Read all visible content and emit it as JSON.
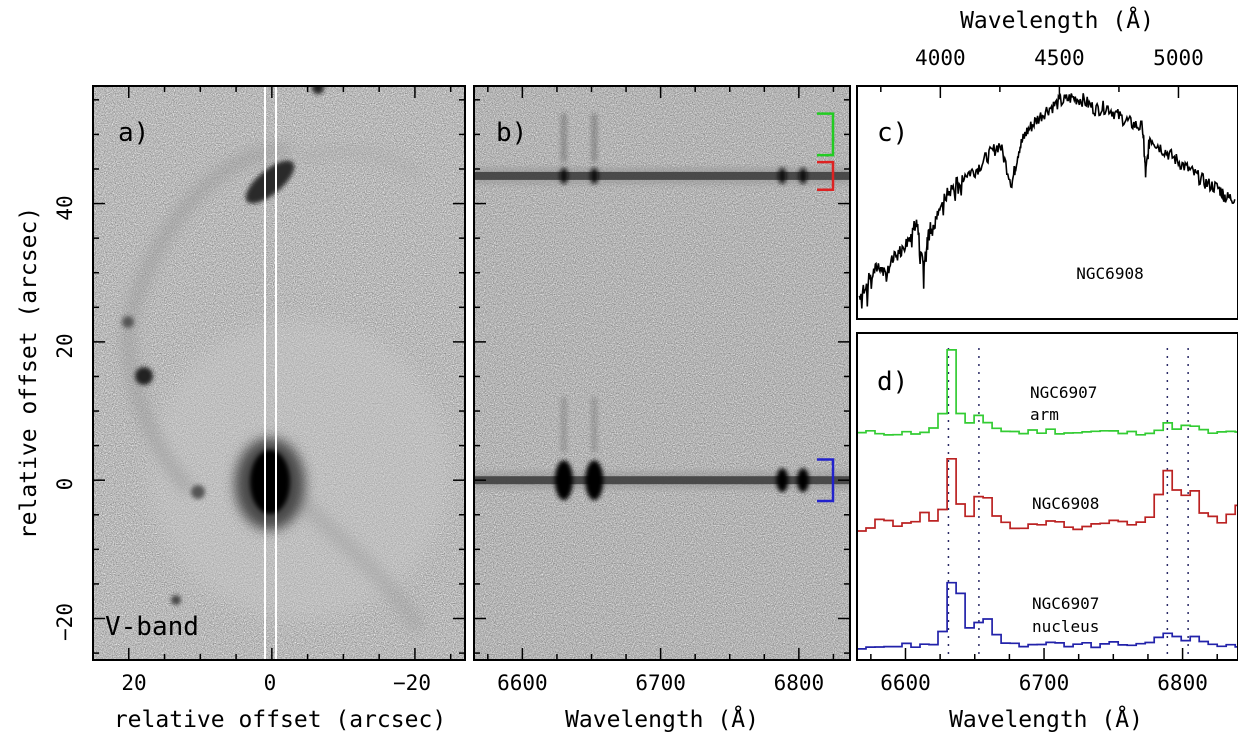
{
  "figure": {
    "panel_a": {
      "label": "a)",
      "band_label": "V-band",
      "xlabel": "relative offset (arcsec)",
      "ylabel": "relative offset (arcsec)",
      "xticks": [
        "20",
        "0",
        "−20"
      ],
      "yticks": [
        "−20",
        "0",
        "20",
        "40"
      ]
    },
    "panel_b": {
      "label": "b)",
      "xlabel": "Wavelength (Å)",
      "xticks": [
        "6600",
        "6700",
        "6800"
      ],
      "bracket_colors": [
        "#22cc22",
        "#dd2222",
        "#2222cc"
      ]
    },
    "panel_c": {
      "label": "c)",
      "annotation": "NGC6908",
      "top_xlabel": "Wavelength (Å)",
      "top_xticks": [
        "4000",
        "4500",
        "5000"
      ]
    },
    "panel_d": {
      "label": "d)",
      "xlabel": "Wavelength (Å)",
      "xticks": [
        "6600",
        "6700",
        "6800"
      ],
      "annotations": [
        {
          "line1": "NGC6907",
          "line2": "arm"
        },
        {
          "line1": "NGC6908",
          "line2": ""
        },
        {
          "line1": "NGC6907",
          "line2": "nucleus"
        }
      ]
    }
  },
  "chart_data": [
    {
      "type": "heatmap",
      "panel": "a",
      "title": "",
      "xlabel": "relative offset (arcsec)",
      "ylabel": "relative offset (arcsec)",
      "xlim": [
        25,
        -27
      ],
      "ylim": [
        -26,
        57
      ],
      "annotation": "V-band"
    },
    {
      "type": "heatmap",
      "panel": "b",
      "title": "",
      "xlabel": "Wavelength (Å)",
      "ylabel": "relative offset (arcsec)",
      "xlim": [
        6565,
        6837
      ],
      "ylim": [
        -26,
        57
      ],
      "continuum_traces_offset": [
        44,
        0
      ],
      "emission_lines_A": [
        6630,
        6652,
        6788,
        6803
      ],
      "brackets": [
        {
          "color": "#22cc22",
          "from": 47,
          "to": 53
        },
        {
          "color": "#dd2222",
          "from": 42,
          "to": 46
        },
        {
          "color": "#2222cc",
          "from": -3,
          "to": 3
        }
      ]
    },
    {
      "type": "line",
      "panel": "c",
      "title": "",
      "xlabel": "Wavelength (Å)",
      "xlim": [
        3650,
        5250
      ],
      "series": [
        {
          "name": "NGC6908",
          "x": [
            3660,
            3700,
            3740,
            3780,
            3820,
            3860,
            3900,
            3930,
            3950,
            3970,
            4000,
            4050,
            4100,
            4150,
            4200,
            4250,
            4300,
            4330,
            4360,
            4400,
            4450,
            4500,
            4550,
            4600,
            4650,
            4700,
            4750,
            4800,
            4850,
            4862,
            4880,
            4920,
            4970,
            5020,
            5070,
            5120,
            5170,
            5200,
            5240
          ],
          "y": [
            0.1,
            0.17,
            0.23,
            0.22,
            0.28,
            0.33,
            0.42,
            0.2,
            0.4,
            0.38,
            0.5,
            0.56,
            0.62,
            0.64,
            0.7,
            0.75,
            0.58,
            0.73,
            0.8,
            0.85,
            0.9,
            0.93,
            0.95,
            0.94,
            0.9,
            0.91,
            0.87,
            0.84,
            0.82,
            0.62,
            0.78,
            0.74,
            0.7,
            0.66,
            0.62,
            0.58,
            0.56,
            0.52,
            0.52
          ]
        }
      ]
    },
    {
      "type": "line",
      "panel": "d",
      "title": "",
      "xlabel": "Wavelength (Å)",
      "xlim": [
        6565,
        6840
      ],
      "line_markers_A": [
        6631,
        6653,
        6789,
        6804
      ],
      "series": [
        {
          "name": "NGC6907 arm",
          "color": "#33cc33",
          "x": [
            6565,
            6580,
            6595,
            6610,
            6620,
            6626,
            6630,
            6634,
            6640,
            6648,
            6652,
            6656,
            6665,
            6680,
            6700,
            6720,
            6740,
            6760,
            6780,
            6788,
            6795,
            6803,
            6812,
            6825,
            6840
          ],
          "y": [
            0.05,
            0.06,
            0.05,
            0.07,
            0.1,
            0.4,
            0.95,
            0.35,
            0.1,
            0.2,
            0.32,
            0.18,
            0.08,
            0.06,
            0.08,
            0.06,
            0.07,
            0.05,
            0.09,
            0.16,
            0.1,
            0.14,
            0.07,
            0.05,
            0.06
          ]
        },
        {
          "name": "NGC6908",
          "color": "#bb2222",
          "x": [
            6565,
            6580,
            6595,
            6610,
            6620,
            6626,
            6631,
            6636,
            6642,
            6648,
            6653,
            6658,
            6668,
            6680,
            6700,
            6720,
            6740,
            6760,
            6775,
            6782,
            6788,
            6795,
            6804,
            6812,
            6825,
            6840
          ],
          "y": [
            0.15,
            0.25,
            0.18,
            0.3,
            0.22,
            0.5,
            0.95,
            0.45,
            0.25,
            0.4,
            0.7,
            0.35,
            0.2,
            0.18,
            0.22,
            0.18,
            0.24,
            0.2,
            0.3,
            0.6,
            0.78,
            0.45,
            0.62,
            0.3,
            0.22,
            0.4
          ]
        },
        {
          "name": "NGC6907 nucleus",
          "color": "#2222aa",
          "x": [
            6565,
            6590,
            6610,
            6622,
            6628,
            6632,
            6638,
            6645,
            6650,
            6654,
            6660,
            6670,
            6690,
            6720,
            6750,
            6775,
            6785,
            6790,
            6797,
            6804,
            6812,
            6825,
            6840
          ],
          "y": [
            0.02,
            0.02,
            0.03,
            0.08,
            0.4,
            0.98,
            0.45,
            0.12,
            0.3,
            0.42,
            0.15,
            0.04,
            0.03,
            0.03,
            0.04,
            0.05,
            0.12,
            0.16,
            0.08,
            0.12,
            0.05,
            0.03,
            0.04
          ]
        }
      ]
    }
  ]
}
